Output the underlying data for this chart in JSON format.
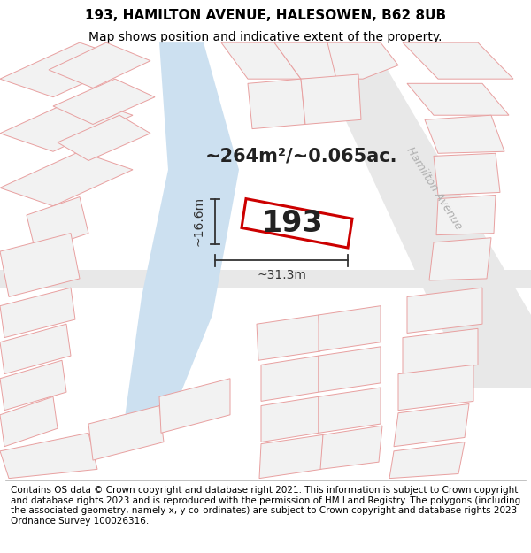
{
  "title_line1": "193, HAMILTON AVENUE, HALESOWEN, B62 8UB",
  "title_line2": "Map shows position and indicative extent of the property.",
  "area_label": "~264m²/~0.065ac.",
  "plot_number": "193",
  "dim_width": "~31.3m",
  "dim_height": "~16.6m",
  "street_label": "Hamilton Avenue",
  "footer_text": "Contains OS data © Crown copyright and database right 2021. This information is subject to Crown copyright and database rights 2023 and is reproduced with the permission of HM Land Registry. The polygons (including the associated geometry, namely x, y co-ordinates) are subject to Crown copyright and database rights 2023 Ordnance Survey 100026316.",
  "map_bg": "#ffffff",
  "water_color": "#cce0f0",
  "road_fill": "#e8e8e8",
  "plot_fill": "#ffffff",
  "plot_edge": "#cc0000",
  "prop_fill": "#f2f2f2",
  "prop_edge": "#e8a0a0",
  "gray_line": "#d0d0d0",
  "street_color": "#b0b0b0",
  "dim_color": "#333333",
  "title_fontsize": 11,
  "subtitle_fontsize": 10,
  "footer_fontsize": 7.5,
  "area_fontsize": 15,
  "plot_num_fontsize": 24
}
